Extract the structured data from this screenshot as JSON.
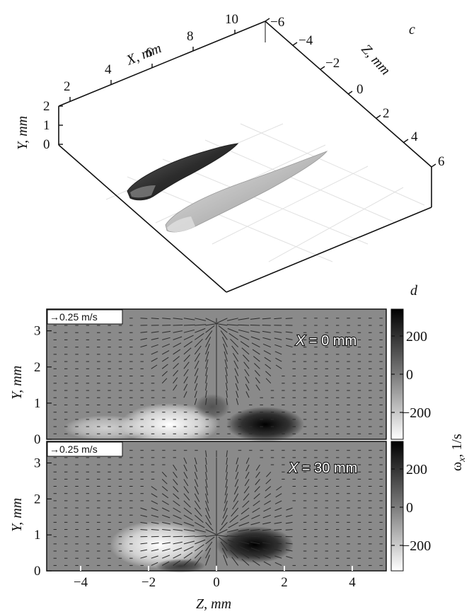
{
  "panel_c": {
    "letter": "c",
    "x_axis": {
      "label": "X, mm",
      "ticks": [
        "2",
        "4",
        "6",
        "8",
        "10"
      ]
    },
    "z_axis": {
      "label": "Z, mm",
      "ticks": [
        "−6",
        "−4",
        "−2",
        "0",
        "2",
        "4",
        "6"
      ]
    },
    "y_axis": {
      "label": "Y, mm",
      "ticks": [
        "0",
        "1",
        "2"
      ]
    }
  },
  "panel_d": {
    "letter": "d",
    "shared_xlabel": "Z, mm",
    "colorbar": {
      "label": "ω",
      "label_sub": "x",
      "label_unit": ", 1/s",
      "ticks": [
        "200",
        "0",
        "−200"
      ],
      "colors": [
        "#ffffff",
        "#7a7a7a",
        "#000000"
      ]
    }
  },
  "chart_data": [
    {
      "type": "heatmap",
      "title": "X = 0 mm",
      "title_var": "X",
      "title_val": " = 0 mm",
      "reference_vector": "→0.25 m/s",
      "xlabel": "Z, mm",
      "ylabel": "Y, mm",
      "xlim": [
        -5,
        5
      ],
      "ylim": [
        0,
        3.6
      ],
      "xticks": [
        "−4",
        "−2",
        "0",
        "2",
        "4"
      ],
      "yticks": [
        "0",
        "1",
        "2",
        "3"
      ],
      "colorbar_range": [
        -300,
        300
      ]
    },
    {
      "type": "heatmap",
      "title": "X = 30 mm",
      "title_var": "X",
      "title_val": " = 30 mm",
      "reference_vector": "→0.25 m/s",
      "xlabel": "Z, mm",
      "ylabel": "Y, mm",
      "xlim": [
        -5,
        5
      ],
      "ylim": [
        0,
        3.6
      ],
      "xticks": [
        "−4",
        "−2",
        "0",
        "2",
        "4"
      ],
      "yticks": [
        "0",
        "1",
        "2",
        "3"
      ],
      "colorbar_range": [
        -300,
        300
      ]
    }
  ]
}
